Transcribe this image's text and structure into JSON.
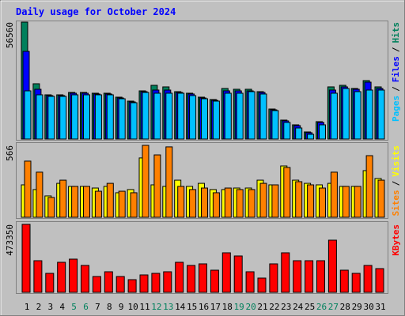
{
  "chart_data": [
    {
      "type": "bar",
      "title": "Daily usage for October 2024",
      "separator": "/",
      "ylim": [
        0,
        56560
      ],
      "yticks": [
        56560
      ],
      "series": [
        {
          "name": "Hits",
          "color": "#00805c",
          "values": [
            56560,
            26750,
            21400,
            21400,
            22550,
            22550,
            22170,
            22170,
            20260,
            18350,
            23310,
            25990,
            25230,
            22930,
            22170,
            20260,
            19110,
            24460,
            24080,
            24080,
            22930,
            14520,
            9170,
            6880,
            3440,
            8410,
            25230,
            25990,
            24460,
            28280,
            25230
          ]
        },
        {
          "name": "Files",
          "color": "#0000ff",
          "values": [
            42420,
            24080,
            21020,
            21020,
            22170,
            22170,
            21790,
            21790,
            19870,
            17960,
            22930,
            23700,
            23700,
            22550,
            21790,
            19870,
            18730,
            23310,
            23310,
            23310,
            22550,
            14140,
            8790,
            6500,
            3060,
            8030,
            23700,
            25230,
            24080,
            27520,
            24460
          ]
        },
        {
          "name": "Pages",
          "color": "#00c0ff",
          "values": [
            23310,
            21400,
            20640,
            20640,
            21400,
            21400,
            21400,
            21400,
            19490,
            17580,
            22550,
            22170,
            22170,
            22170,
            21020,
            19490,
            18350,
            22170,
            22170,
            22930,
            21790,
            13760,
            8030,
            5350,
            2290,
            6880,
            22170,
            24460,
            22930,
            23700,
            23700
          ]
        }
      ]
    },
    {
      "type": "bar",
      "separator": "/",
      "ylim": [
        0,
        566
      ],
      "yticks": [
        566
      ],
      "series": [
        {
          "name": "Visits",
          "color": "#ffff00",
          "values": [
            255,
            218,
            168,
            267,
            243,
            243,
            230,
            243,
            193,
            218,
            467,
            255,
            243,
            292,
            243,
            267,
            218,
            218,
            230,
            230,
            292,
            255,
            404,
            292,
            267,
            255,
            267,
            243,
            243,
            367,
            305
          ]
        },
        {
          "name": "Sites",
          "color": "#ff8000",
          "values": [
            442,
            355,
            156,
            292,
            243,
            243,
            205,
            267,
            205,
            193,
            566,
            491,
            554,
            243,
            218,
            230,
            193,
            230,
            218,
            218,
            267,
            255,
            392,
            280,
            255,
            230,
            355,
            243,
            243,
            485,
            292
          ]
        }
      ]
    },
    {
      "type": "bar",
      "ylim": [
        0,
        473350
      ],
      "yticks": [
        473350
      ],
      "categories": [
        "1",
        "2",
        "3",
        "4",
        "5",
        "6",
        "7",
        "8",
        "9",
        "10",
        "11",
        "12",
        "13",
        "14",
        "15",
        "16",
        "17",
        "18",
        "19",
        "20",
        "21",
        "22",
        "23",
        "24",
        "25",
        "26",
        "27",
        "28",
        "29",
        "30",
        "31"
      ],
      "category_colors": [
        "#000000",
        "#000000",
        "#000000",
        "#000000",
        "#00805c",
        "#00805c",
        "#000000",
        "#000000",
        "#000000",
        "#000000",
        "#000000",
        "#00805c",
        "#00805c",
        "#000000",
        "#000000",
        "#000000",
        "#000000",
        "#000000",
        "#00805c",
        "#00805c",
        "#000000",
        "#000000",
        "#000000",
        "#000000",
        "#000000",
        "#00805c",
        "#00805c",
        "#000000",
        "#000000",
        "#000000",
        "#000000"
      ],
      "series": [
        {
          "name": "KBytes",
          "color": "#ff0000",
          "values": [
            473350,
            220160,
            132100,
            209150,
            231170,
            187140,
            110080,
            143100,
            110080,
            88060,
            121090,
            132100,
            143100,
            209150,
            187140,
            198140,
            154110,
            275200,
            253180,
            143100,
            99070,
            198140,
            275200,
            220160,
            220160,
            220160,
            363260,
            154110,
            132100,
            187140,
            165120
          ]
        }
      ]
    }
  ]
}
